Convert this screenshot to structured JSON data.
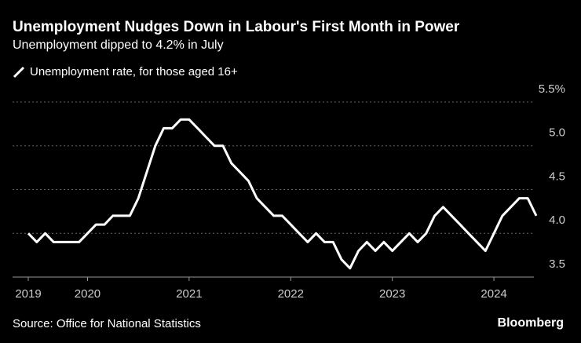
{
  "chart_data": {
    "type": "line",
    "title": "Unemployment Nudges Down in Labour's First Month in Power",
    "subtitle": "Unemployment dipped to 4.2% in July",
    "source": "Source: Office for National Statistics",
    "brand": "Bloomberg",
    "categories": [
      "2019",
      null,
      null,
      null,
      null,
      null,
      null,
      "2020",
      null,
      null,
      null,
      null,
      null,
      null,
      null,
      null,
      null,
      null,
      null,
      "2021",
      null,
      null,
      null,
      null,
      null,
      null,
      null,
      null,
      null,
      null,
      null,
      "2022",
      null,
      null,
      null,
      null,
      null,
      null,
      null,
      null,
      null,
      null,
      null,
      "2023",
      null,
      null,
      null,
      null,
      null,
      null,
      null,
      null,
      null,
      null,
      null,
      "2024",
      null,
      null,
      null,
      null,
      null
    ],
    "series": [
      {
        "name": "Unemployment rate, for those aged 16+",
        "color": "#ffffff",
        "values": [
          4.0,
          3.9,
          4.0,
          3.9,
          3.9,
          3.9,
          3.9,
          4.0,
          4.1,
          4.1,
          4.2,
          4.2,
          4.2,
          4.4,
          4.7,
          5.0,
          5.2,
          5.2,
          5.3,
          5.3,
          5.2,
          5.1,
          5.0,
          5.0,
          4.8,
          4.7,
          4.6,
          4.4,
          4.3,
          4.2,
          4.2,
          4.1,
          4.0,
          3.9,
          4.0,
          3.9,
          3.9,
          3.7,
          3.6,
          3.8,
          3.9,
          3.8,
          3.9,
          3.8,
          3.9,
          4.0,
          3.9,
          4.0,
          4.2,
          4.3,
          4.2,
          4.1,
          4.0,
          3.9,
          3.8,
          4.0,
          4.2,
          4.3,
          4.4,
          4.4,
          4.2
        ]
      }
    ],
    "ylim": [
      3.5,
      5.5
    ],
    "yticks": [
      3.5,
      {
        "value": 4,
        "label": "4.0"
      },
      4.5,
      {
        "value": 5,
        "label": "5.0"
      },
      {
        "value": 5.5,
        "label": "5.5%"
      }
    ],
    "grid": true
  }
}
